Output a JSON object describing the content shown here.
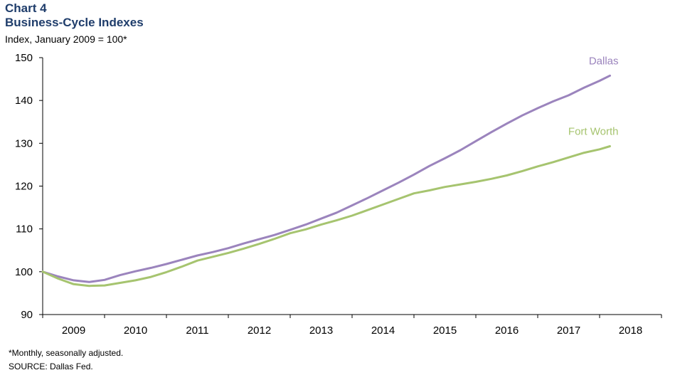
{
  "header": {
    "chart_number": "Chart 4",
    "title": "Business-Cycle Indexes",
    "y_unit": "Index, January 2009 = 100*"
  },
  "footer": {
    "note": "*Monthly, seasonally adjusted.",
    "source": "SOURCE: Dallas Fed."
  },
  "colors": {
    "dallas": "#9b84bd",
    "fort_worth": "#a6c46f",
    "axis": "#000000"
  },
  "chart_data": {
    "type": "line",
    "title": "Business-Cycle Indexes",
    "ylabel": "Index, January 2009 = 100*",
    "xlabel": "",
    "ylim": [
      90,
      150
    ],
    "yticks": [
      90,
      100,
      110,
      120,
      130,
      140,
      150
    ],
    "xlim": [
      "2009-01",
      "2018-12"
    ],
    "x_tick_labels": [
      "2009",
      "2010",
      "2011",
      "2012",
      "2013",
      "2014",
      "2015",
      "2016",
      "2017",
      "2018"
    ],
    "grid": false,
    "legend": "inline labels at line ends",
    "series": [
      {
        "name": "Dallas",
        "points": [
          [
            "2009-01",
            100.0
          ],
          [
            "2009-04",
            98.9
          ],
          [
            "2009-07",
            98.0
          ],
          [
            "2009-10",
            97.6
          ],
          [
            "2010-01",
            98.1
          ],
          [
            "2010-04",
            99.2
          ],
          [
            "2010-07",
            100.1
          ],
          [
            "2010-10",
            100.9
          ],
          [
            "2011-01",
            101.8
          ],
          [
            "2011-04",
            102.8
          ],
          [
            "2011-07",
            103.8
          ],
          [
            "2011-10",
            104.6
          ],
          [
            "2012-01",
            105.5
          ],
          [
            "2012-04",
            106.6
          ],
          [
            "2012-07",
            107.6
          ],
          [
            "2012-10",
            108.6
          ],
          [
            "2013-01",
            109.8
          ],
          [
            "2013-04",
            111.0
          ],
          [
            "2013-07",
            112.4
          ],
          [
            "2013-10",
            113.8
          ],
          [
            "2014-01",
            115.5
          ],
          [
            "2014-04",
            117.2
          ],
          [
            "2014-07",
            119.0
          ],
          [
            "2014-10",
            120.8
          ],
          [
            "2015-01",
            122.7
          ],
          [
            "2015-04",
            124.7
          ],
          [
            "2015-07",
            126.5
          ],
          [
            "2015-10",
            128.4
          ],
          [
            "2016-01",
            130.5
          ],
          [
            "2016-04",
            132.6
          ],
          [
            "2016-07",
            134.6
          ],
          [
            "2016-10",
            136.5
          ],
          [
            "2017-01",
            138.2
          ],
          [
            "2017-04",
            139.8
          ],
          [
            "2017-07",
            141.2
          ],
          [
            "2017-10",
            143.0
          ],
          [
            "2018-01",
            144.6
          ],
          [
            "2018-03",
            145.8
          ]
        ]
      },
      {
        "name": "Fort Worth",
        "points": [
          [
            "2009-01",
            100.0
          ],
          [
            "2009-04",
            98.4
          ],
          [
            "2009-07",
            97.1
          ],
          [
            "2009-10",
            96.7
          ],
          [
            "2010-01",
            96.8
          ],
          [
            "2010-04",
            97.4
          ],
          [
            "2010-07",
            98.0
          ],
          [
            "2010-10",
            98.8
          ],
          [
            "2011-01",
            99.9
          ],
          [
            "2011-04",
            101.2
          ],
          [
            "2011-07",
            102.6
          ],
          [
            "2011-10",
            103.5
          ],
          [
            "2012-01",
            104.4
          ],
          [
            "2012-04",
            105.4
          ],
          [
            "2012-07",
            106.5
          ],
          [
            "2012-10",
            107.7
          ],
          [
            "2013-01",
            109.0
          ],
          [
            "2013-04",
            109.9
          ],
          [
            "2013-07",
            111.0
          ],
          [
            "2013-10",
            112.0
          ],
          [
            "2014-01",
            113.1
          ],
          [
            "2014-04",
            114.4
          ],
          [
            "2014-07",
            115.7
          ],
          [
            "2014-10",
            117.0
          ],
          [
            "2015-01",
            118.3
          ],
          [
            "2015-04",
            119.0
          ],
          [
            "2015-07",
            119.8
          ],
          [
            "2015-10",
            120.4
          ],
          [
            "2016-01",
            121.0
          ],
          [
            "2016-04",
            121.7
          ],
          [
            "2016-07",
            122.5
          ],
          [
            "2016-10",
            123.5
          ],
          [
            "2017-01",
            124.6
          ],
          [
            "2017-04",
            125.6
          ],
          [
            "2017-07",
            126.7
          ],
          [
            "2017-10",
            127.8
          ],
          [
            "2018-01",
            128.6
          ],
          [
            "2018-03",
            129.3
          ]
        ]
      }
    ]
  }
}
